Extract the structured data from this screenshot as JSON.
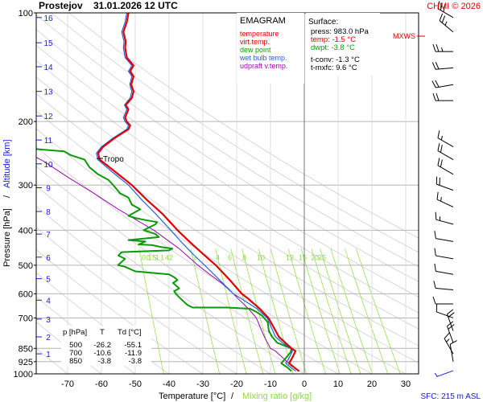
{
  "header": {
    "station": "Prostejov",
    "datetime": "31.01.2026 12 UTC",
    "copyright": "CHMI © 2026"
  },
  "legend": {
    "title": "EMAGRAM",
    "items": [
      {
        "label": "temperature",
        "color": "#e00000"
      },
      {
        "label": "virt.temp.",
        "color": "#e00000"
      },
      {
        "label": "dew point",
        "color": "#0a9a0a"
      },
      {
        "label": "wet bulb temp.",
        "color": "#2a62d8"
      },
      {
        "label": "udpraft v.temp.",
        "color": "#9a0aa8"
      }
    ]
  },
  "surface": {
    "title": "Surface:",
    "press": "press: 983.0 hPa",
    "temp": "temp: -1.5 °C",
    "dwpt": "dwpt: -3.8 °C",
    "tconv": "t-conv: -1.3 °C",
    "tmxfc": "t-mxfc: 9.6 °C"
  },
  "table": {
    "headers": [
      "p [hPa]",
      "T",
      "Td [°C]"
    ],
    "rows": [
      [
        "500",
        "-26.2",
        "-55.1"
      ],
      [
        "700",
        "-10.6",
        "-11.9"
      ],
      [
        "850",
        "-3.8",
        "-3.8"
      ]
    ]
  },
  "labels": {
    "tropo": "Tropo",
    "mxws": "MXWS",
    "sfc": "SFC: 215 m ASL",
    "ylabel_pressure": "Pressure [hPa]",
    "ylabel_sep": "/",
    "ylabel_altitude": "Altitude [km]",
    "xlabel_temp": "Temperature [°C]",
    "xlabel_sep": "/",
    "xlabel_mix": "Mixing ratio [g/kg]"
  },
  "colors": {
    "temperature": "#e00000",
    "dewpoint": "#0a9a0a",
    "wetbulb": "#2a62d8",
    "parcel": "#9a0aa8",
    "altitude": "#1a1adc",
    "mixing_ratio": "#8cdc3c",
    "grid": "#b4b4b4",
    "dry_adiabat": "#c8c8c8",
    "wind": "#000000"
  },
  "chart_data": {
    "type": "line",
    "title": "EMAGRAM",
    "xlabel": "Temperature [°C] / Mixing ratio [g/kg]",
    "ylabel": "Pressure [hPa] / Altitude [km]",
    "xlim": [
      -80,
      35
    ],
    "ylim": [
      1000,
      100
    ],
    "log_y": true,
    "x_ticks": [
      -70,
      -60,
      -50,
      -40,
      -30,
      -20,
      -10,
      0,
      10,
      20,
      30
    ],
    "pressure_ticks": [
      100,
      200,
      300,
      400,
      500,
      600,
      700,
      850,
      925,
      1000
    ],
    "altitude_ticks": [
      {
        "km": "1",
        "p": 880
      },
      {
        "km": "2",
        "p": 790
      },
      {
        "km": "3",
        "p": 705
      },
      {
        "km": "4",
        "p": 625
      },
      {
        "km": "5",
        "p": 545
      },
      {
        "km": "6",
        "p": 475
      },
      {
        "km": "7",
        "p": 410
      },
      {
        "km": "8",
        "p": 355
      },
      {
        "km": "9",
        "p": 305
      },
      {
        "km": "10",
        "p": 262
      },
      {
        "km": "11",
        "p": 225
      },
      {
        "km": "12",
        "p": 193
      },
      {
        "km": "13",
        "p": 165
      },
      {
        "km": "14",
        "p": 141
      },
      {
        "km": "15",
        "p": 121
      },
      {
        "km": "16",
        "p": 103
      }
    ],
    "mixing_ratio_labels": {
      "p": 465,
      "values": [
        "0.1",
        "0.5",
        "1",
        "1",
        "4",
        "2",
        "3",
        "4",
        "6",
        "8",
        "10",
        "12",
        "15",
        "20",
        "25"
      ]
    },
    "tropopause": {
      "p": 255,
      "t": -60.5
    },
    "series": [
      {
        "name": "temperature",
        "points": [
          [
            -1.5,
            983
          ],
          [
            -3.0,
            960
          ],
          [
            -4.5,
            935
          ],
          [
            -3.5,
            900
          ],
          [
            -2.6,
            865
          ],
          [
            -3.8,
            850
          ],
          [
            -5.6,
            820
          ],
          [
            -7.5,
            790
          ],
          [
            -10.6,
            700
          ],
          [
            -13.2,
            660
          ],
          [
            -16.5,
            620
          ],
          [
            -18.5,
            600
          ],
          [
            -22.0,
            550
          ],
          [
            -26.2,
            500
          ],
          [
            -30.0,
            465
          ],
          [
            -34.0,
            430
          ],
          [
            -37.5,
            400
          ],
          [
            -42.0,
            360
          ],
          [
            -46.5,
            330
          ],
          [
            -51.0,
            300
          ],
          [
            -56.0,
            275
          ],
          [
            -60.5,
            255
          ],
          [
            -61.0,
            245
          ],
          [
            -59.5,
            235
          ],
          [
            -56.0,
            222
          ],
          [
            -52.0,
            210
          ],
          [
            -51.5,
            205
          ],
          [
            -52.5,
            200
          ],
          [
            -53.0,
            195
          ],
          [
            -52.0,
            185
          ],
          [
            -52.8,
            180
          ],
          [
            -51.0,
            172
          ],
          [
            -50.5,
            165
          ],
          [
            -51.2,
            158
          ],
          [
            -50.5,
            150
          ],
          [
            -51.5,
            145
          ],
          [
            -50.5,
            140
          ],
          [
            -52.5,
            133
          ],
          [
            -53.0,
            125
          ],
          [
            -52.8,
            120
          ],
          [
            -53.5,
            113
          ],
          [
            -52.5,
            106
          ],
          [
            -52.0,
            100
          ]
        ]
      },
      {
        "name": "dew point",
        "points": [
          [
            -3.8,
            983
          ],
          [
            -5.0,
            960
          ],
          [
            -6.8,
            935
          ],
          [
            -5.5,
            905
          ],
          [
            -4.0,
            870
          ],
          [
            -3.8,
            850
          ],
          [
            -8.0,
            820
          ],
          [
            -9.5,
            790
          ],
          [
            -10.5,
            760
          ],
          [
            -10.8,
            720
          ],
          [
            -11.9,
            700
          ],
          [
            -12.5,
            690
          ],
          [
            -14.0,
            675
          ],
          [
            -16.0,
            660
          ],
          [
            -23.0,
            655
          ],
          [
            -33.0,
            655
          ],
          [
            -34.5,
            645
          ],
          [
            -36.5,
            620
          ],
          [
            -38.0,
            600
          ],
          [
            -38.5,
            590
          ],
          [
            -37.0,
            580
          ],
          [
            -38.8,
            560
          ],
          [
            -37.5,
            550
          ],
          [
            -38.5,
            540
          ],
          [
            -40.0,
            530
          ],
          [
            -50.0,
            520
          ],
          [
            -53.0,
            505
          ],
          [
            -55.1,
            500
          ],
          [
            -53.0,
            480
          ],
          [
            -55.0,
            470
          ],
          [
            -54.0,
            460
          ],
          [
            -40.0,
            455
          ],
          [
            -39.0,
            450
          ],
          [
            -42.5,
            445
          ],
          [
            -45.0,
            440
          ],
          [
            -49.0,
            438
          ],
          [
            -47.0,
            430
          ],
          [
            -52.0,
            426
          ],
          [
            -43.0,
            418
          ],
          [
            -44.0,
            410
          ],
          [
            -47.5,
            400
          ],
          [
            -44.0,
            385
          ],
          [
            -43.5,
            380
          ],
          [
            -47.0,
            375
          ],
          [
            -50.0,
            370
          ],
          [
            -52.0,
            365
          ],
          [
            -48.5,
            350
          ],
          [
            -51.0,
            340
          ],
          [
            -52.0,
            325
          ],
          [
            -54.5,
            316
          ],
          [
            -56.5,
            300
          ],
          [
            -58.0,
            290
          ],
          [
            -61.0,
            280
          ],
          [
            -63.5,
            268
          ],
          [
            -65.0,
            255
          ],
          [
            -69.0,
            248
          ],
          [
            -71.0,
            242
          ],
          [
            -75.5,
            240
          ],
          [
            -80.0,
            238
          ]
        ]
      },
      {
        "name": "wet bulb temp.",
        "points": [
          [
            -2.5,
            983
          ],
          [
            -4.0,
            960
          ],
          [
            -5.5,
            935
          ],
          [
            -4.4,
            900
          ],
          [
            -3.5,
            865
          ],
          [
            -4.0,
            850
          ],
          [
            -6.5,
            820
          ],
          [
            -8.5,
            790
          ],
          [
            -11.0,
            700
          ],
          [
            -14.0,
            660
          ],
          [
            -18.5,
            620
          ],
          [
            -21.0,
            600
          ],
          [
            -25.0,
            550
          ],
          [
            -29.5,
            500
          ],
          [
            -33.0,
            465
          ],
          [
            -36.5,
            430
          ],
          [
            -39.5,
            400
          ],
          [
            -44.0,
            360
          ],
          [
            -48.0,
            330
          ],
          [
            -52.0,
            300
          ],
          [
            -57.0,
            275
          ],
          [
            -61.0,
            255
          ],
          [
            -61.5,
            245
          ],
          [
            -60.0,
            235
          ],
          [
            -56.5,
            222
          ],
          [
            -52.5,
            210
          ],
          [
            -52.0,
            205
          ],
          [
            -53.0,
            200
          ],
          [
            -53.5,
            195
          ],
          [
            -52.5,
            185
          ],
          [
            -53.2,
            180
          ],
          [
            -51.5,
            172
          ],
          [
            -51.0,
            165
          ],
          [
            -51.6,
            158
          ],
          [
            -51.0,
            150
          ],
          [
            -52.0,
            145
          ],
          [
            -51.0,
            140
          ],
          [
            -53.0,
            133
          ],
          [
            -53.5,
            125
          ],
          [
            -53.3,
            120
          ],
          [
            -54.0,
            113
          ],
          [
            -53.0,
            106
          ],
          [
            -52.5,
            100
          ]
        ]
      },
      {
        "name": "udpraft v.temp.",
        "points": [
          [
            -1.5,
            983
          ],
          [
            -3.0,
            960
          ],
          [
            -4.6,
            935
          ],
          [
            -6.5,
            900
          ],
          [
            -8.5,
            865
          ],
          [
            -10.0,
            850
          ],
          [
            -11.5,
            800
          ],
          [
            -12.6,
            760
          ],
          [
            -14.2,
            700
          ],
          [
            -16.5,
            660
          ],
          [
            -19.5,
            620
          ],
          [
            -21.0,
            600
          ],
          [
            -24.5,
            560
          ],
          [
            -28.0,
            530
          ],
          [
            -31.5,
            500
          ],
          [
            -37.0,
            450
          ],
          [
            -44.5,
            400
          ],
          [
            -55.0,
            350
          ],
          [
            -62.5,
            315
          ],
          [
            -70.0,
            285
          ],
          [
            -77.0,
            258
          ],
          [
            -80.0,
            249
          ]
        ]
      }
    ],
    "wind_barbs": [
      {
        "p": 980,
        "dir": 250,
        "speed": 5,
        "color": "blue"
      },
      {
        "p": 925,
        "dir": 350,
        "speed": 10
      },
      {
        "p": 880,
        "dir": 330,
        "speed": 15
      },
      {
        "p": 820,
        "dir": 340,
        "speed": 20
      },
      {
        "p": 760,
        "dir": 340,
        "speed": 20
      },
      {
        "p": 700,
        "dir": 290,
        "speed": 10
      },
      {
        "p": 640,
        "dir": 270,
        "speed": 10
      },
      {
        "p": 585,
        "dir": 275,
        "speed": 10
      },
      {
        "p": 530,
        "dir": 280,
        "speed": 10
      },
      {
        "p": 480,
        "dir": 280,
        "speed": 10
      },
      {
        "p": 430,
        "dir": 280,
        "speed": 10
      },
      {
        "p": 385,
        "dir": 285,
        "speed": 15
      },
      {
        "p": 345,
        "dir": 295,
        "speed": 15
      },
      {
        "p": 310,
        "dir": 290,
        "speed": 20
      },
      {
        "p": 280,
        "dir": 300,
        "speed": 20
      },
      {
        "p": 255,
        "dir": 300,
        "speed": 20
      },
      {
        "p": 235,
        "dir": 300,
        "speed": 15
      },
      {
        "p": 175,
        "dir": 270,
        "speed": 20
      },
      {
        "p": 158,
        "dir": 260,
        "speed": 20
      },
      {
        "p": 142,
        "dir": 265,
        "speed": 20
      },
      {
        "p": 128,
        "dir": 270,
        "speed": 25
      },
      {
        "p": 113,
        "dir": 310,
        "speed": 25
      },
      {
        "p": 103,
        "dir": 300,
        "speed": 30
      }
    ]
  }
}
